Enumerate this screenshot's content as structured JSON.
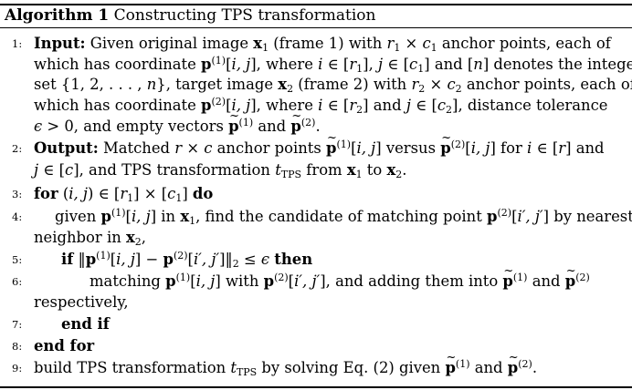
{
  "caption": {
    "label": "Algorithm 1",
    "title": "Constructing TPS transformation"
  },
  "lines": [
    {
      "num": "1:",
      "segments": [
        {
          "cls": "bf",
          "text": "Input:"
        },
        {
          "text": " Given original image "
        },
        {
          "cls": "vec",
          "text": "x"
        },
        {
          "sub": "1"
        },
        {
          "text": " (frame 1) with "
        },
        {
          "cls": "it",
          "text": "r"
        },
        {
          "sub": "1"
        },
        {
          "text": " × "
        },
        {
          "cls": "it",
          "text": "c"
        },
        {
          "sub": "1"
        },
        {
          "text": " anchor points, each of"
        }
      ]
    },
    {
      "num": "",
      "segments": [
        {
          "text": "which has coordinate "
        },
        {
          "cls": "vec",
          "text": "p"
        },
        {
          "sup": "(1)"
        },
        {
          "text": "["
        },
        {
          "cls": "it",
          "text": "i, j"
        },
        {
          "text": "], where "
        },
        {
          "cls": "it",
          "text": "i"
        },
        {
          "text": " ∈ ["
        },
        {
          "cls": "it",
          "text": "r"
        },
        {
          "sub": "1"
        },
        {
          "text": "], "
        },
        {
          "cls": "it",
          "text": "j"
        },
        {
          "text": " ∈ ["
        },
        {
          "cls": "it",
          "text": "c"
        },
        {
          "sub": "1"
        },
        {
          "text": "] and ["
        },
        {
          "cls": "it",
          "text": "n"
        },
        {
          "text": "] denotes the integer"
        }
      ]
    },
    {
      "num": "",
      "segments": [
        {
          "text": "set {1, 2, . . . , "
        },
        {
          "cls": "it",
          "text": "n"
        },
        {
          "text": "}, target image "
        },
        {
          "cls": "vec",
          "text": "x"
        },
        {
          "sub": "2"
        },
        {
          "text": " (frame 2) with "
        },
        {
          "cls": "it",
          "text": "r"
        },
        {
          "sub": "2"
        },
        {
          "text": " × "
        },
        {
          "cls": "it",
          "text": "c"
        },
        {
          "sub": "2"
        },
        {
          "text": " anchor points, each of"
        }
      ]
    },
    {
      "num": "",
      "segments": [
        {
          "text": "which has coordinate "
        },
        {
          "cls": "vec",
          "text": "p"
        },
        {
          "sup": "(2)"
        },
        {
          "text": "["
        },
        {
          "cls": "it",
          "text": "i, j"
        },
        {
          "text": "], where "
        },
        {
          "cls": "it",
          "text": "i"
        },
        {
          "text": " ∈ ["
        },
        {
          "cls": "it",
          "text": "r"
        },
        {
          "sub": "2"
        },
        {
          "text": "] and "
        },
        {
          "cls": "it",
          "text": "j"
        },
        {
          "text": " ∈ ["
        },
        {
          "cls": "it",
          "text": "c"
        },
        {
          "sub": "2"
        },
        {
          "text": "], distance tolerance"
        }
      ]
    },
    {
      "num": "",
      "segments": [
        {
          "cls": "it",
          "text": "ϵ"
        },
        {
          "text": " > 0, and empty vectors "
        },
        {
          "cls": "vec tilde",
          "text": "p"
        },
        {
          "sup": "(1)"
        },
        {
          "text": " and "
        },
        {
          "cls": "vec tilde",
          "text": "p"
        },
        {
          "sup": "(2)"
        },
        {
          "text": "."
        }
      ]
    },
    {
      "num": "2:",
      "segments": [
        {
          "cls": "bf",
          "text": "Output:"
        },
        {
          "text": " Matched "
        },
        {
          "cls": "it",
          "text": "r"
        },
        {
          "text": " × "
        },
        {
          "cls": "it",
          "text": "c"
        },
        {
          "text": " anchor points "
        },
        {
          "cls": "vec tilde",
          "text": "p"
        },
        {
          "sup": "(1)"
        },
        {
          "text": "["
        },
        {
          "cls": "it",
          "text": "i, j"
        },
        {
          "text": "] versus "
        },
        {
          "cls": "vec tilde",
          "text": "p"
        },
        {
          "sup": "(2)"
        },
        {
          "text": "["
        },
        {
          "cls": "it",
          "text": "i, j"
        },
        {
          "text": "] for "
        },
        {
          "cls": "it",
          "text": "i"
        },
        {
          "text": " ∈ ["
        },
        {
          "cls": "it",
          "text": "r"
        },
        {
          "text": "] and"
        }
      ]
    },
    {
      "num": "",
      "segments": [
        {
          "cls": "it",
          "text": "j"
        },
        {
          "text": " ∈ ["
        },
        {
          "cls": "it",
          "text": "c"
        },
        {
          "text": "], and TPS transformation "
        },
        {
          "cls": "it",
          "text": "t"
        },
        {
          "sub": "TPS"
        },
        {
          "text": " from "
        },
        {
          "cls": "vec",
          "text": "x"
        },
        {
          "sub": "1"
        },
        {
          "text": " to "
        },
        {
          "cls": "vec",
          "text": "x"
        },
        {
          "sub": "2"
        },
        {
          "text": "."
        }
      ]
    },
    {
      "num": "3:",
      "segments": [
        {
          "cls": "bf",
          "text": "for"
        },
        {
          "text": " ("
        },
        {
          "cls": "it",
          "text": "i, j"
        },
        {
          "text": ") ∈ ["
        },
        {
          "cls": "it",
          "text": "r"
        },
        {
          "sub": "1"
        },
        {
          "text": "] × ["
        },
        {
          "cls": "it",
          "text": "c"
        },
        {
          "sub": "1"
        },
        {
          "text": "] "
        },
        {
          "cls": "bf",
          "text": "do"
        }
      ]
    },
    {
      "num": "4:",
      "segments": [
        {
          "text": "given "
        },
        {
          "cls": "vec",
          "text": "p"
        },
        {
          "sup": "(1)"
        },
        {
          "text": "["
        },
        {
          "cls": "it",
          "text": "i, j"
        },
        {
          "text": "] in "
        },
        {
          "cls": "vec",
          "text": "x"
        },
        {
          "sub": "1"
        },
        {
          "text": ", find the candidate of matching point "
        },
        {
          "cls": "vec",
          "text": "p"
        },
        {
          "sup": "(2)"
        },
        {
          "text": "["
        },
        {
          "cls": "it",
          "text": "i′, j′"
        },
        {
          "text": "] by nearest"
        }
      ]
    },
    {
      "num": "",
      "segments": [
        {
          "text": "neighbor in "
        },
        {
          "cls": "vec",
          "text": "x"
        },
        {
          "sub": "2"
        },
        {
          "text": ","
        }
      ]
    },
    {
      "num": "5:",
      "segments": [
        {
          "cls": "bf",
          "text": "if"
        },
        {
          "text": " ‖"
        },
        {
          "cls": "vec",
          "text": "p"
        },
        {
          "sup": "(1)"
        },
        {
          "text": "["
        },
        {
          "cls": "it",
          "text": "i, j"
        },
        {
          "text": "] − "
        },
        {
          "cls": "vec",
          "text": "p"
        },
        {
          "sup": "(2)"
        },
        {
          "text": "["
        },
        {
          "cls": "it",
          "text": "i′, j′"
        },
        {
          "text": "]‖"
        },
        {
          "sub": "2"
        },
        {
          "text": " ≤ "
        },
        {
          "cls": "it",
          "text": "ϵ"
        },
        {
          "text": " "
        },
        {
          "cls": "bf",
          "text": "then"
        }
      ]
    },
    {
      "num": "6:",
      "segments": [
        {
          "text": "matching "
        },
        {
          "cls": "vec",
          "text": "p"
        },
        {
          "sup": "(1)"
        },
        {
          "text": "["
        },
        {
          "cls": "it",
          "text": "i, j"
        },
        {
          "text": "] with "
        },
        {
          "cls": "vec",
          "text": "p"
        },
        {
          "sup": "(2)"
        },
        {
          "text": "["
        },
        {
          "cls": "it",
          "text": "i′, j′"
        },
        {
          "text": "], and adding them into "
        },
        {
          "cls": "vec tilde",
          "text": "p"
        },
        {
          "sup": "(1)"
        },
        {
          "text": " and "
        },
        {
          "cls": "vec tilde",
          "text": "p"
        },
        {
          "sup": "(2)"
        }
      ]
    },
    {
      "num": "",
      "segments": [
        {
          "text": "respectively,"
        }
      ]
    },
    {
      "num": "7:",
      "segments": [
        {
          "cls": "bf",
          "text": "end if"
        }
      ]
    },
    {
      "num": "8:",
      "segments": [
        {
          "cls": "bf",
          "text": "end for"
        }
      ]
    },
    {
      "num": "9:",
      "segments": [
        {
          "text": "build TPS transformation "
        },
        {
          "cls": "it",
          "text": "t"
        },
        {
          "sub": "TPS"
        },
        {
          "text": " by solving Eq. (2) given "
        },
        {
          "cls": "vec tilde",
          "text": "p"
        },
        {
          "sup": "(1)"
        },
        {
          "text": " and "
        },
        {
          "cls": "vec tilde",
          "text": "p"
        },
        {
          "sup": "(2)"
        },
        {
          "text": "."
        }
      ]
    }
  ]
}
